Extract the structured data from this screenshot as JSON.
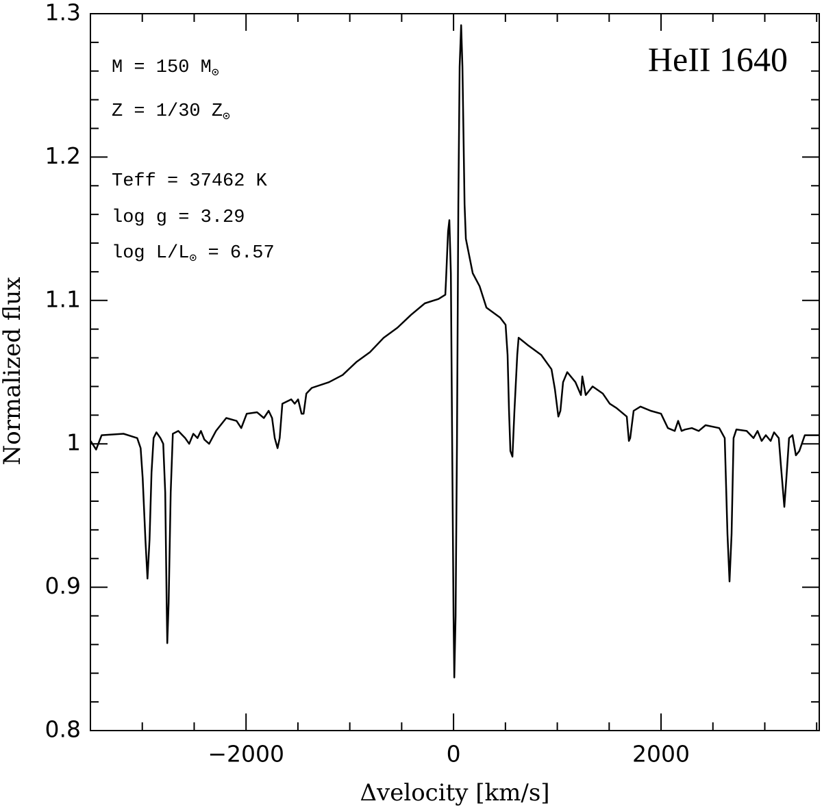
{
  "chart_data": {
    "type": "line",
    "title": "HeII 1640",
    "x_label": "Δvelocity [km/s]",
    "y_label": "Normalized flux",
    "annotations": [
      {
        "text": "M = 150 M",
        "sub": "⊙"
      },
      {
        "text": "Z = 1/30 Z",
        "sub": "⊙"
      },
      {
        "text": "Teff = 37462 K"
      },
      {
        "text": "log g = 3.29"
      },
      {
        "text": "log L/L",
        "sub": "⊙",
        "after": " = 6.57"
      }
    ],
    "xlim": [
      -3500,
      3525
    ],
    "ylim": [
      0.8,
      1.3
    ],
    "xticks": [
      {
        "value": -2000,
        "label": "−2000"
      },
      0,
      2000
    ],
    "yticks": [
      0.8,
      0.9,
      1,
      1.1,
      1.2,
      1.3
    ],
    "xminorticks": [
      -3500,
      -3000,
      -2500,
      -1500,
      -1000,
      -500,
      500,
      1000,
      1500,
      2500,
      3000,
      3500
    ],
    "yminorticks": [
      0.82,
      0.84,
      0.86,
      0.88,
      0.92,
      0.94,
      0.96,
      0.98,
      1.02,
      1.04,
      1.06,
      1.08,
      1.12,
      1.14,
      1.16,
      1.18,
      1.22,
      1.24,
      1.26,
      1.28
    ],
    "series": [
      {
        "color": "#000000",
        "x": [
          -3498,
          -3445,
          -3392,
          -3181,
          -3049,
          -3016,
          -2996,
          -2970,
          -2950,
          -2930,
          -2911,
          -2891,
          -2864,
          -2825,
          -2798,
          -2779,
          -2765,
          -2759,
          -2746,
          -2726,
          -2706,
          -2653,
          -2587,
          -2548,
          -2508,
          -2468,
          -2435,
          -2402,
          -2356,
          -2290,
          -2191,
          -2092,
          -2046,
          -1993,
          -1894,
          -1828,
          -1782,
          -1749,
          -1723,
          -1696,
          -1676,
          -1650,
          -1564,
          -1531,
          -1498,
          -1465,
          -1445,
          -1419,
          -1366,
          -1201,
          -1069,
          -937,
          -805,
          -673,
          -541,
          -409,
          -277,
          -145,
          -79,
          -73,
          -53,
          -40,
          -26,
          -13,
          0,
          7,
          20,
          33,
          46,
          59,
          73,
          86,
          106,
          119,
          185,
          251,
          317,
          449,
          502,
          521,
          535,
          548,
          568,
          587,
          614,
          627,
          713,
          845,
          944,
          977,
          1010,
          1030,
          1056,
          1096,
          1175,
          1228,
          1241,
          1274,
          1340,
          1439,
          1505,
          1571,
          1670,
          1690,
          1703,
          1736,
          1802,
          1901,
          2000,
          2066,
          2132,
          2165,
          2198,
          2231,
          2297,
          2363,
          2429,
          2561,
          2614,
          2640,
          2660,
          2680,
          2699,
          2726,
          2825,
          2891,
          2930,
          2970,
          3010,
          3056,
          3089,
          3135,
          3155,
          3188,
          3208,
          3234,
          3267,
          3300,
          3333,
          3386,
          3524
        ],
        "values": [
          1.002,
          0.996,
          1.006,
          1.007,
          1.004,
          0.997,
          0.976,
          0.933,
          0.906,
          0.933,
          0.98,
          1.004,
          1.008,
          1.004,
          1.0,
          0.966,
          0.889,
          0.861,
          0.889,
          0.966,
          1.007,
          1.009,
          1.004,
          1.0,
          1.007,
          1.004,
          1.009,
          1.003,
          1.0,
          1.009,
          1.018,
          1.016,
          1.011,
          1.021,
          1.022,
          1.018,
          1.023,
          1.018,
          1.004,
          0.997,
          1.004,
          1.028,
          1.031,
          1.028,
          1.031,
          1.021,
          1.021,
          1.035,
          1.039,
          1.043,
          1.048,
          1.057,
          1.064,
          1.074,
          1.081,
          1.09,
          1.098,
          1.101,
          1.104,
          1.114,
          1.148,
          1.156,
          1.119,
          1.0,
          0.88,
          0.837,
          0.88,
          1.0,
          1.167,
          1.263,
          1.292,
          1.263,
          1.167,
          1.143,
          1.119,
          1.11,
          1.095,
          1.088,
          1.083,
          1.062,
          1.023,
          0.995,
          0.991,
          1.023,
          1.062,
          1.074,
          1.069,
          1.062,
          1.052,
          1.038,
          1.019,
          1.023,
          1.043,
          1.05,
          1.043,
          1.034,
          1.047,
          1.034,
          1.04,
          1.035,
          1.028,
          1.025,
          1.019,
          1.002,
          1.004,
          1.023,
          1.026,
          1.023,
          1.021,
          1.011,
          1.009,
          1.016,
          1.009,
          1.01,
          1.011,
          1.009,
          1.013,
          1.011,
          1.004,
          0.937,
          0.904,
          0.937,
          1.004,
          1.01,
          1.009,
          1.004,
          1.009,
          1.002,
          1.006,
          1.002,
          1.008,
          1.004,
          0.985,
          0.956,
          0.976,
          1.004,
          1.006,
          0.992,
          0.995,
          1.006,
          1.006
        ]
      }
    ]
  }
}
